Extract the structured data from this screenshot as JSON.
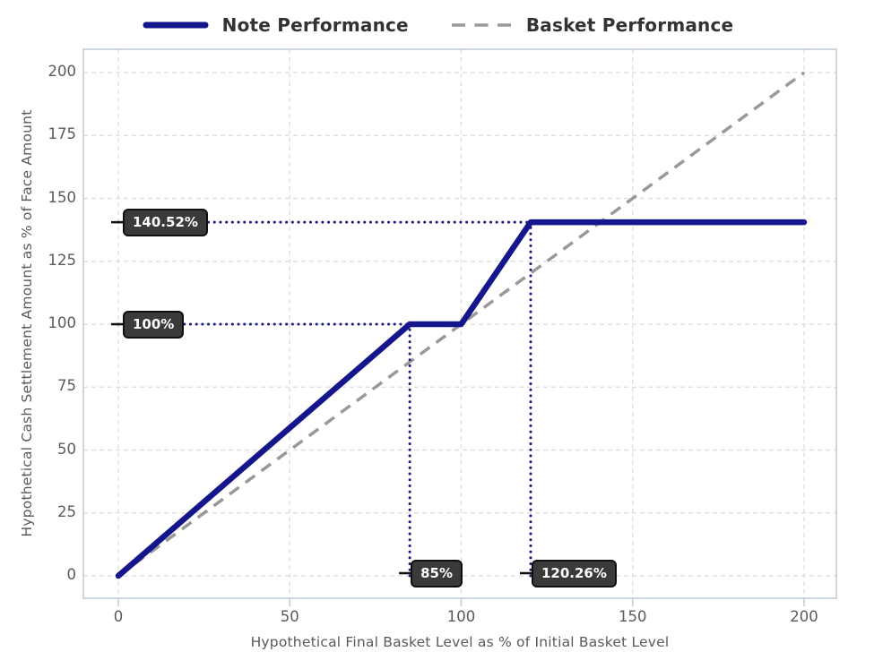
{
  "legend": {
    "items": [
      {
        "label": "Note Performance",
        "color": "#15158c",
        "style": "solid"
      },
      {
        "label": "Basket Performance",
        "color": "#999999",
        "style": "dashed"
      }
    ]
  },
  "chart_data": {
    "type": "line",
    "title": "",
    "xlabel": "Hypothetical Final Basket Level as % of Initial Basket Level",
    "ylabel": "Hypothetical Cash Settlement Amount as % of Face Amount",
    "xlim": [
      0,
      200
    ],
    "ylim": [
      0,
      200
    ],
    "xticks": [
      0,
      50,
      100,
      150,
      200
    ],
    "yticks": [
      0,
      25,
      50,
      75,
      100,
      125,
      150,
      175,
      200
    ],
    "grid": true,
    "legend_position": "top-center",
    "series": [
      {
        "name": "Basket Performance",
        "line_style": "dashed",
        "color": "#999999",
        "points": [
          [
            0,
            0
          ],
          [
            200,
            200
          ]
        ]
      },
      {
        "name": "Note Performance",
        "line_style": "solid",
        "color": "#15158c",
        "points": [
          [
            0,
            0
          ],
          [
            85,
            100
          ],
          [
            100,
            100
          ],
          [
            120.26,
            140.52
          ],
          [
            200,
            140.52
          ]
        ]
      }
    ],
    "annotations": [
      {
        "label": "140.52%",
        "axis": "y",
        "value": 140.52,
        "guide_to": 120.26
      },
      {
        "label": "100%",
        "axis": "y",
        "value": 100,
        "guide_to": 85
      },
      {
        "label": "85%",
        "axis": "x",
        "value": 85,
        "guide_to": 100
      },
      {
        "label": "120.26%",
        "axis": "x",
        "value": 120.26,
        "guide_to": 140.52
      }
    ]
  },
  "colors": {
    "note_line": "#15158c",
    "basket_line": "#999999",
    "grid": "#dcdcdc",
    "plot_border": "#c2cbd8",
    "tick_label": "#5a5a5a",
    "axis_title": "#5a5a5a",
    "legend_text": "#333333",
    "annotation_bg": "#3a3a3a",
    "annotation_border": "#0f0f0f",
    "annotation_text": "#ffffff",
    "guide_dotted": "#1b1b80"
  }
}
